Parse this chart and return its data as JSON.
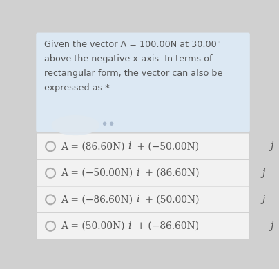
{
  "question_bg": "#dce8f3",
  "option_bg": "#f2f2f2",
  "outer_bg": "#d0d0d0",
  "text_color": "#555555",
  "circle_color": "#aaaaaa",
  "avatar_color": "#ccd9e8",
  "title_lines": [
    "Given the vector Λ = 100.00N at 30.00°",
    "above the negative x-axis. In terms of",
    "rectangular form, the vector can also be",
    "expressed as *"
  ],
  "option_texts_plain": [
    "A = (86.60N) ",
    "A = (−50.00N) ",
    "A = (−86.60N) ",
    "A = (50.00N) "
  ],
  "option_texts_mid": [
    " + (−50.00N) ",
    " + (86.60N) ",
    " + (50.00N) ",
    " + (−86.60N) "
  ],
  "option_i": [
    "i",
    "i",
    "i",
    "i"
  ],
  "option_j": [
    "j",
    "j",
    "j",
    "j"
  ],
  "figsize": [
    4.04,
    3.9
  ],
  "dpi": 100
}
